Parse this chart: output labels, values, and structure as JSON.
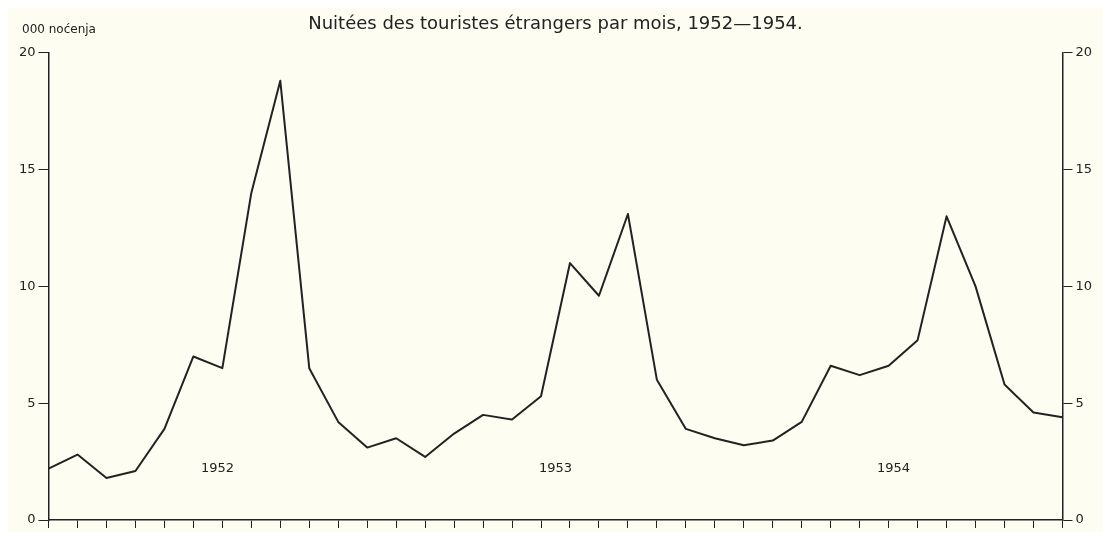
{
  "chart_data": {
    "type": "line",
    "title": "Nuitées des touristes étrangers par mois, 1952—1954.",
    "ylabel": "000 noćenja",
    "categories": [
      null,
      null,
      null,
      null,
      null,
      null,
      null,
      null,
      null,
      null,
      null,
      null,
      null,
      null,
      null,
      null,
      null,
      null,
      null,
      null,
      null,
      null,
      null,
      null,
      null,
      null,
      null,
      null,
      null,
      null,
      null,
      null,
      null,
      null,
      null,
      null
    ],
    "series": [
      {
        "color": "#222222",
        "values": [
          2.2,
          2.8,
          1.8,
          2.1,
          3.9,
          7.0,
          6.5,
          14.0,
          18.8,
          6.5,
          4.2,
          3.1,
          3.5,
          2.7,
          3.7,
          4.5,
          4.3,
          5.3,
          11.0,
          9.6,
          13.1,
          6.0,
          3.9,
          3.5,
          3.2,
          3.4,
          4.2,
          6.6,
          6.2,
          6.6,
          7.7,
          13.0,
          10.0,
          5.8,
          4.6,
          4.4
        ]
      }
    ],
    "ylim": [
      0,
      20
    ],
    "yticks": [
      0,
      5,
      10,
      15,
      20
    ],
    "y2lim": [
      0,
      20
    ],
    "y2ticks": [
      0,
      5,
      10,
      15,
      20
    ],
    "annotations": [
      "1952",
      "1953",
      "1954"
    ],
    "grid": false,
    "legend": false,
    "marker": "none",
    "line_style": "solid",
    "tick_labels": "y"
  }
}
